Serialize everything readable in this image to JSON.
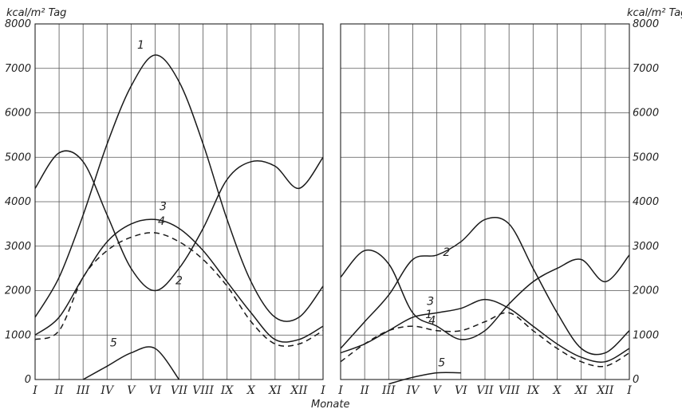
{
  "chart_data": [
    {
      "type": "line",
      "panel": "left",
      "ylabel": "kcal/m² Tag",
      "xlabel": "Monate",
      "ylim": [
        0,
        8000
      ],
      "yticks": [
        "0",
        "1000",
        "2000",
        "3000",
        "4000",
        "5000",
        "6000",
        "7000",
        "8000"
      ],
      "xtick_labels": [
        "I",
        "II",
        "III",
        "IV",
        "V",
        "VI",
        "VII",
        "VIII",
        "IX",
        "X",
        "XI",
        "XII",
        "I"
      ],
      "x": [
        0,
        1,
        2,
        3,
        4,
        5,
        6,
        7,
        8,
        9,
        10,
        11,
        12
      ],
      "grid": true,
      "series": [
        {
          "name": "1",
          "dashed": false,
          "values": [
            1400,
            2300,
            3700,
            5300,
            6600,
            7300,
            6700,
            5300,
            3600,
            2200,
            1400,
            1400,
            2100
          ]
        },
        {
          "name": "2",
          "dashed": false,
          "values": [
            4300,
            5100,
            4900,
            3700,
            2500,
            2000,
            2500,
            3400,
            4500,
            4900,
            4800,
            4300,
            5000
          ]
        },
        {
          "name": "3",
          "dashed": false,
          "values": [
            1000,
            1400,
            2300,
            3100,
            3500,
            3600,
            3400,
            2900,
            2200,
            1500,
            900,
            900,
            1200
          ]
        },
        {
          "name": "4",
          "dashed": true,
          "values": [
            900,
            1100,
            2300,
            2900,
            3200,
            3300,
            3100,
            2700,
            2100,
            1300,
            800,
            800,
            1100
          ]
        },
        {
          "name": "5",
          "dashed": false,
          "values": [
            null,
            null,
            0,
            300,
            600,
            700,
            0,
            null,
            null,
            null,
            null,
            null,
            null
          ]
        }
      ]
    },
    {
      "type": "line",
      "panel": "right",
      "ylabel": "kcal/m² Tag",
      "ylim": [
        0,
        8000
      ],
      "yticks": [
        "0",
        "1000",
        "2000",
        "3000",
        "4000",
        "5000",
        "6000",
        "7000",
        "8000"
      ],
      "xtick_labels": [
        "I",
        "II",
        "III",
        "IV",
        "V",
        "VI",
        "VII",
        "VIII",
        "IX",
        "X",
        "XI",
        "XII",
        "I"
      ],
      "x": [
        0,
        1,
        2,
        3,
        4,
        5,
        6,
        7,
        8,
        9,
        10,
        11,
        12
      ],
      "grid": true,
      "series": [
        {
          "name": "1",
          "dashed": false,
          "values": [
            2300,
            2900,
            2600,
            1500,
            1200,
            900,
            1100,
            1700,
            2200,
            2500,
            2700,
            2200,
            2800
          ]
        },
        {
          "name": "2",
          "dashed": false,
          "values": [
            700,
            1300,
            1900,
            2700,
            2800,
            3100,
            3600,
            3500,
            2500,
            1500,
            700,
            600,
            1100
          ]
        },
        {
          "name": "3",
          "dashed": false,
          "values": [
            600,
            800,
            1100,
            1400,
            1500,
            1600,
            1800,
            1600,
            1200,
            800,
            500,
            400,
            700
          ]
        },
        {
          "name": "4",
          "dashed": true,
          "values": [
            400,
            800,
            1100,
            1200,
            1100,
            1100,
            1300,
            1500,
            1100,
            700,
            400,
            300,
            600
          ]
        },
        {
          "name": "5",
          "dashed": false,
          "values": [
            null,
            null,
            -100,
            50,
            150,
            150,
            null,
            null,
            null,
            null,
            null,
            null,
            null
          ]
        }
      ]
    }
  ]
}
